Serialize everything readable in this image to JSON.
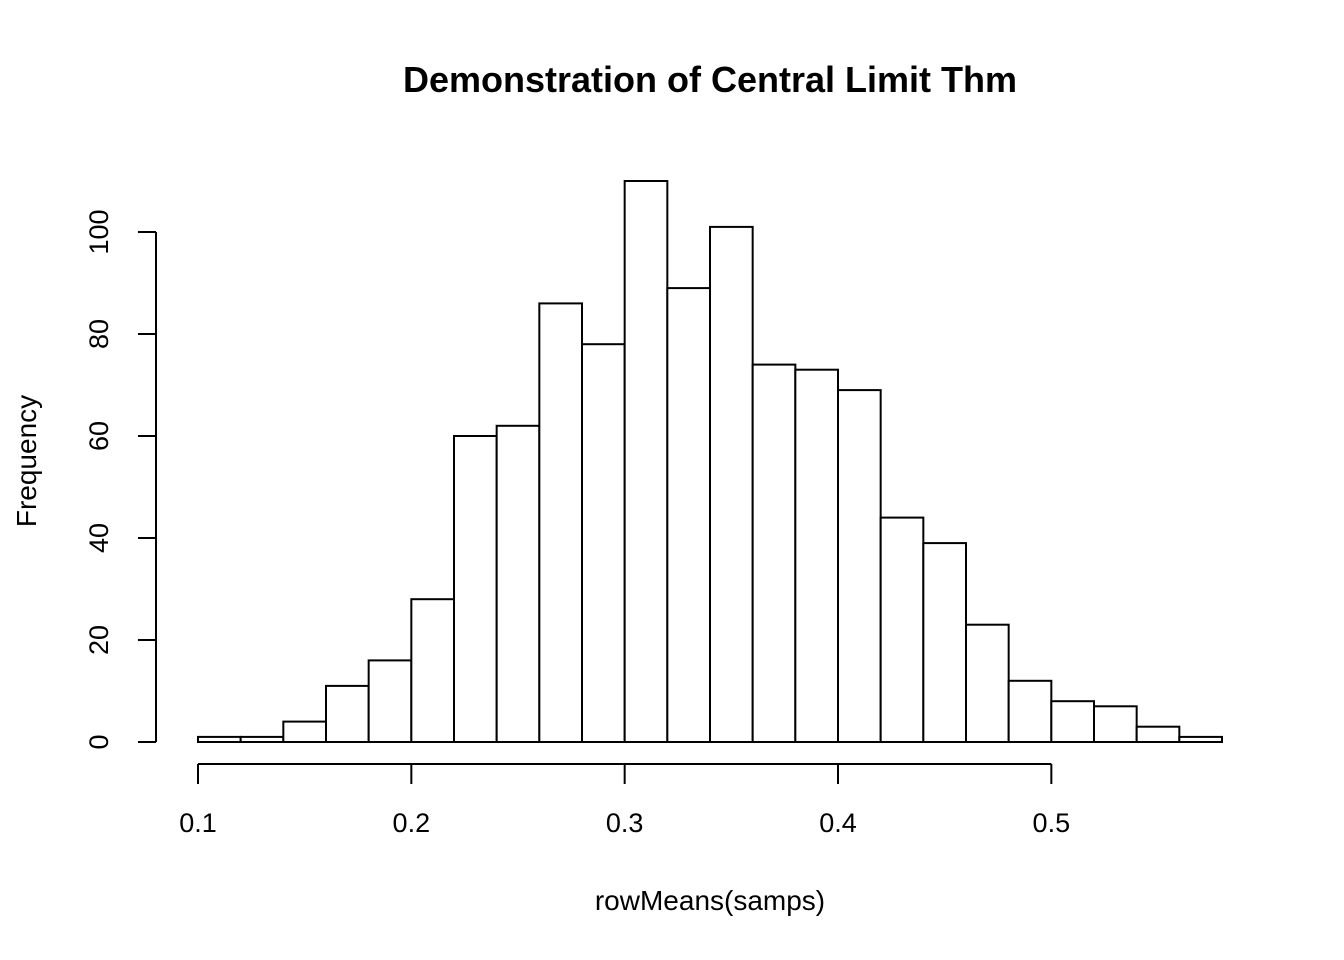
{
  "chart_data": {
    "type": "bar",
    "title": "Demonstration of Central Limit Thm",
    "xlabel": "rowMeans(samps)",
    "ylabel": "Frequency",
    "bin_edges": [
      0.1,
      0.12,
      0.14,
      0.16,
      0.18,
      0.2,
      0.22,
      0.24,
      0.26,
      0.28,
      0.3,
      0.32,
      0.34,
      0.36,
      0.38,
      0.4,
      0.42,
      0.44,
      0.46,
      0.48,
      0.5,
      0.52,
      0.54,
      0.56,
      0.58
    ],
    "values": [
      1,
      1,
      4,
      11,
      16,
      28,
      60,
      62,
      86,
      78,
      110,
      89,
      101,
      74,
      73,
      69,
      44,
      39,
      23,
      12,
      8,
      7,
      3,
      1
    ],
    "x_ticks": [
      0.1,
      0.2,
      0.3,
      0.4,
      0.5
    ],
    "x_tick_labels": [
      "0.1",
      "0.2",
      "0.3",
      "0.4",
      "0.5"
    ],
    "y_ticks": [
      0,
      20,
      40,
      60,
      80,
      100
    ],
    "y_tick_labels": [
      "0",
      "20",
      "40",
      "60",
      "80",
      "100"
    ],
    "xlim": [
      0.1,
      0.58
    ],
    "ylim": [
      0,
      110
    ],
    "grid": false,
    "colors": {
      "bar_fill": "#ffffff",
      "bar_stroke": "#000000"
    }
  }
}
